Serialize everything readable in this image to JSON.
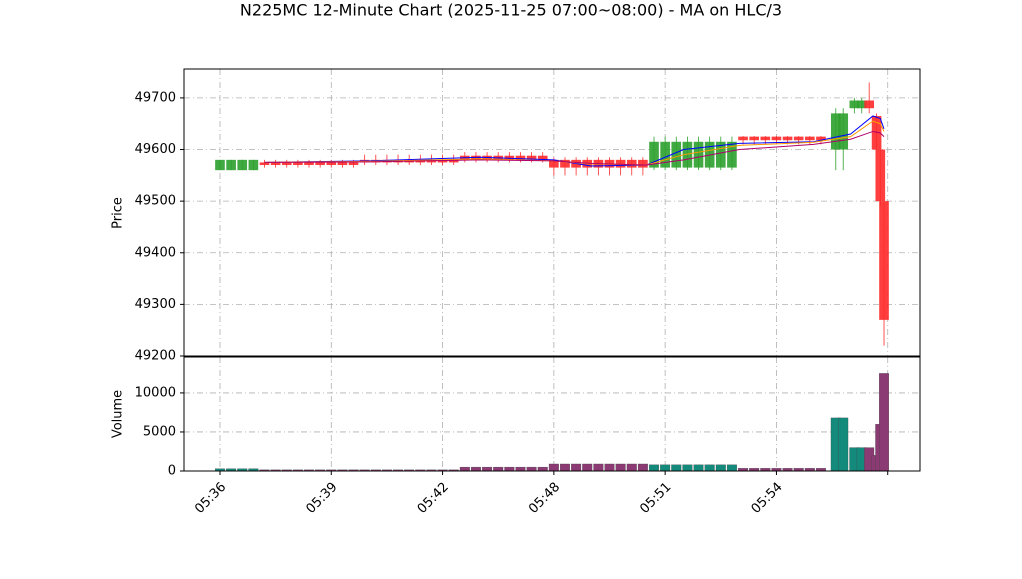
{
  "chart_data": {
    "type": "candlestick",
    "title": "N225MC 12-Minute Chart (2025-11-25 07:00~08:00) - MA on HLC/3",
    "ylabel": "Price",
    "volume_label": "Volume",
    "up_color": "#2ca02c",
    "down_color": "#ff2a2a",
    "volume_up_color": "#138a7c",
    "volume_down_color": "#8b3a73",
    "grid": true,
    "xlim": [
      -9.7,
      188.7
    ],
    "xticks": [
      {
        "value": 0,
        "label": "05:36"
      },
      {
        "value": 30,
        "label": "05:39"
      },
      {
        "value": 60,
        "label": "05:42"
      },
      {
        "value": 90,
        "label": "05:48"
      },
      {
        "value": 120,
        "label": "05:51"
      },
      {
        "value": 150,
        "label": "05:54"
      },
      {
        "value": 180,
        "label": null
      }
    ],
    "ylim": [
      49200,
      49756
    ],
    "yticks": [
      49200,
      49300,
      49400,
      49500,
      49600,
      49700
    ],
    "volume_ylim": [
      0,
      14600
    ],
    "volume_yticks": [
      0,
      5000,
      10000
    ],
    "x": [
      0,
      3,
      6,
      9,
      12,
      15,
      18,
      21,
      24,
      27,
      30,
      33,
      36,
      39,
      42,
      45,
      48,
      51,
      54,
      57,
      60,
      63,
      66,
      69,
      72,
      75,
      78,
      81,
      84,
      87,
      90,
      93,
      96,
      99,
      102,
      105,
      108,
      111,
      114,
      117,
      120,
      123,
      126,
      129,
      132,
      135,
      138,
      141,
      144,
      147,
      150,
      153,
      156,
      159,
      162,
      166,
      168,
      171,
      173,
      175,
      177,
      178,
      179
    ],
    "open": [
      49560,
      49560,
      49560,
      49560,
      49575,
      49575,
      49575,
      49575,
      49575,
      49575,
      49575,
      49575,
      49575,
      49580,
      49580,
      49580,
      49580,
      49580,
      49580,
      49580,
      49580,
      49580,
      49588,
      49588,
      49588,
      49588,
      49588,
      49588,
      49588,
      49588,
      49580,
      49580,
      49580,
      49580,
      49580,
      49580,
      49580,
      49580,
      49580,
      49565,
      49565,
      49565,
      49565,
      49565,
      49565,
      49565,
      49565,
      49625,
      49625,
      49625,
      49625,
      49625,
      49625,
      49625,
      49625,
      49600,
      49600,
      49680,
      49680,
      49695,
      49665,
      49600,
      49500
    ],
    "high": [
      49580,
      49580,
      49580,
      49580,
      49580,
      49580,
      49580,
      49580,
      49580,
      49580,
      49580,
      49580,
      49580,
      49590,
      49590,
      49590,
      49590,
      49590,
      49590,
      49590,
      49590,
      49590,
      49595,
      49595,
      49595,
      49595,
      49595,
      49595,
      49595,
      49595,
      49585,
      49585,
      49585,
      49585,
      49585,
      49585,
      49585,
      49585,
      49585,
      49625,
      49625,
      49625,
      49625,
      49625,
      49625,
      49625,
      49625,
      49626,
      49626,
      49626,
      49626,
      49626,
      49626,
      49626,
      49626,
      49680,
      49680,
      49700,
      49700,
      49730,
      49670,
      49600,
      49500
    ],
    "low": [
      49560,
      49560,
      49560,
      49560,
      49565,
      49565,
      49565,
      49565,
      49565,
      49565,
      49565,
      49565,
      49565,
      49570,
      49570,
      49570,
      49570,
      49570,
      49570,
      49570,
      49570,
      49570,
      49575,
      49575,
      49575,
      49575,
      49575,
      49575,
      49575,
      49575,
      49550,
      49550,
      49550,
      49550,
      49550,
      49550,
      49550,
      49550,
      49550,
      49560,
      49560,
      49560,
      49560,
      49560,
      49560,
      49560,
      49560,
      49610,
      49610,
      49610,
      49610,
      49610,
      49610,
      49610,
      49610,
      49560,
      49560,
      49670,
      49670,
      49670,
      49600,
      49490,
      49220
    ],
    "close": [
      49580,
      49580,
      49580,
      49580,
      49570,
      49570,
      49570,
      49570,
      49570,
      49570,
      49570,
      49570,
      49570,
      49575,
      49575,
      49575,
      49575,
      49575,
      49575,
      49575,
      49575,
      49575,
      49580,
      49580,
      49580,
      49580,
      49580,
      49580,
      49580,
      49580,
      49565,
      49565,
      49565,
      49565,
      49565,
      49565,
      49565,
      49565,
      49565,
      49615,
      49615,
      49615,
      49615,
      49615,
      49615,
      49615,
      49615,
      49618,
      49618,
      49618,
      49618,
      49618,
      49618,
      49618,
      49618,
      49670,
      49670,
      49695,
      49695,
      49680,
      49600,
      49500,
      49270
    ],
    "volume": [
      300,
      300,
      300,
      300,
      150,
      150,
      150,
      150,
      150,
      150,
      150,
      150,
      150,
      150,
      150,
      150,
      150,
      150,
      150,
      150,
      150,
      150,
      500,
      500,
      500,
      500,
      500,
      500,
      500,
      500,
      900,
      900,
      900,
      900,
      900,
      900,
      900,
      900,
      900,
      800,
      800,
      800,
      800,
      800,
      800,
      800,
      800,
      350,
      350,
      350,
      350,
      350,
      350,
      350,
      350,
      6800,
      6800,
      3000,
      3000,
      3000,
      2000,
      6000,
      12500
    ],
    "ma_series": [
      {
        "color": "#0000ff",
        "x": [
          12,
          40,
          70,
          90,
          100,
          115,
          125,
          140,
          160,
          170,
          176,
          178,
          179
        ],
        "values": [
          49575,
          49578,
          49585,
          49580,
          49568,
          49570,
          49600,
          49612,
          49615,
          49630,
          49665,
          49660,
          49640
        ]
      },
      {
        "color": "#ff9900",
        "x": [
          12,
          40,
          70,
          90,
          100,
          115,
          125,
          140,
          160,
          170,
          176,
          178,
          179
        ],
        "values": [
          49575,
          49577,
          49582,
          49578,
          49572,
          49570,
          49590,
          49608,
          49614,
          49625,
          49655,
          49650,
          49635
        ]
      },
      {
        "color": "#b0006a",
        "x": [
          12,
          40,
          70,
          90,
          100,
          115,
          125,
          140,
          160,
          170,
          176,
          178,
          179
        ],
        "values": [
          49575,
          49576,
          49580,
          49578,
          49573,
          49570,
          49580,
          49600,
          49610,
          49620,
          49635,
          49632,
          49625
        ]
      }
    ]
  }
}
